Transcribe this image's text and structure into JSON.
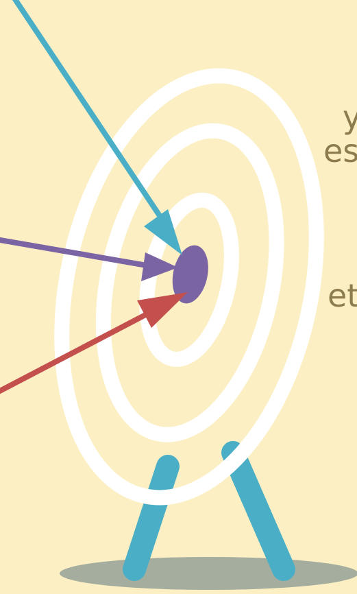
{
  "colors": {
    "background": "#FCEFC3",
    "ring": "#FFFFFF",
    "bullseye": "#7B64A4",
    "arrow_blue": "#4AAFC6",
    "arrow_purple": "#7B64A4",
    "arrow_red": "#C3504D",
    "stand": "#4AAFC6",
    "shadow": "#A5AD9E",
    "text": "#8C7C4E"
  },
  "text_fragments": {
    "line1": "y",
    "line2": "es",
    "line3": "et"
  },
  "icons": {
    "target": "archery-target-icon",
    "arrows": "arrow-icon"
  }
}
